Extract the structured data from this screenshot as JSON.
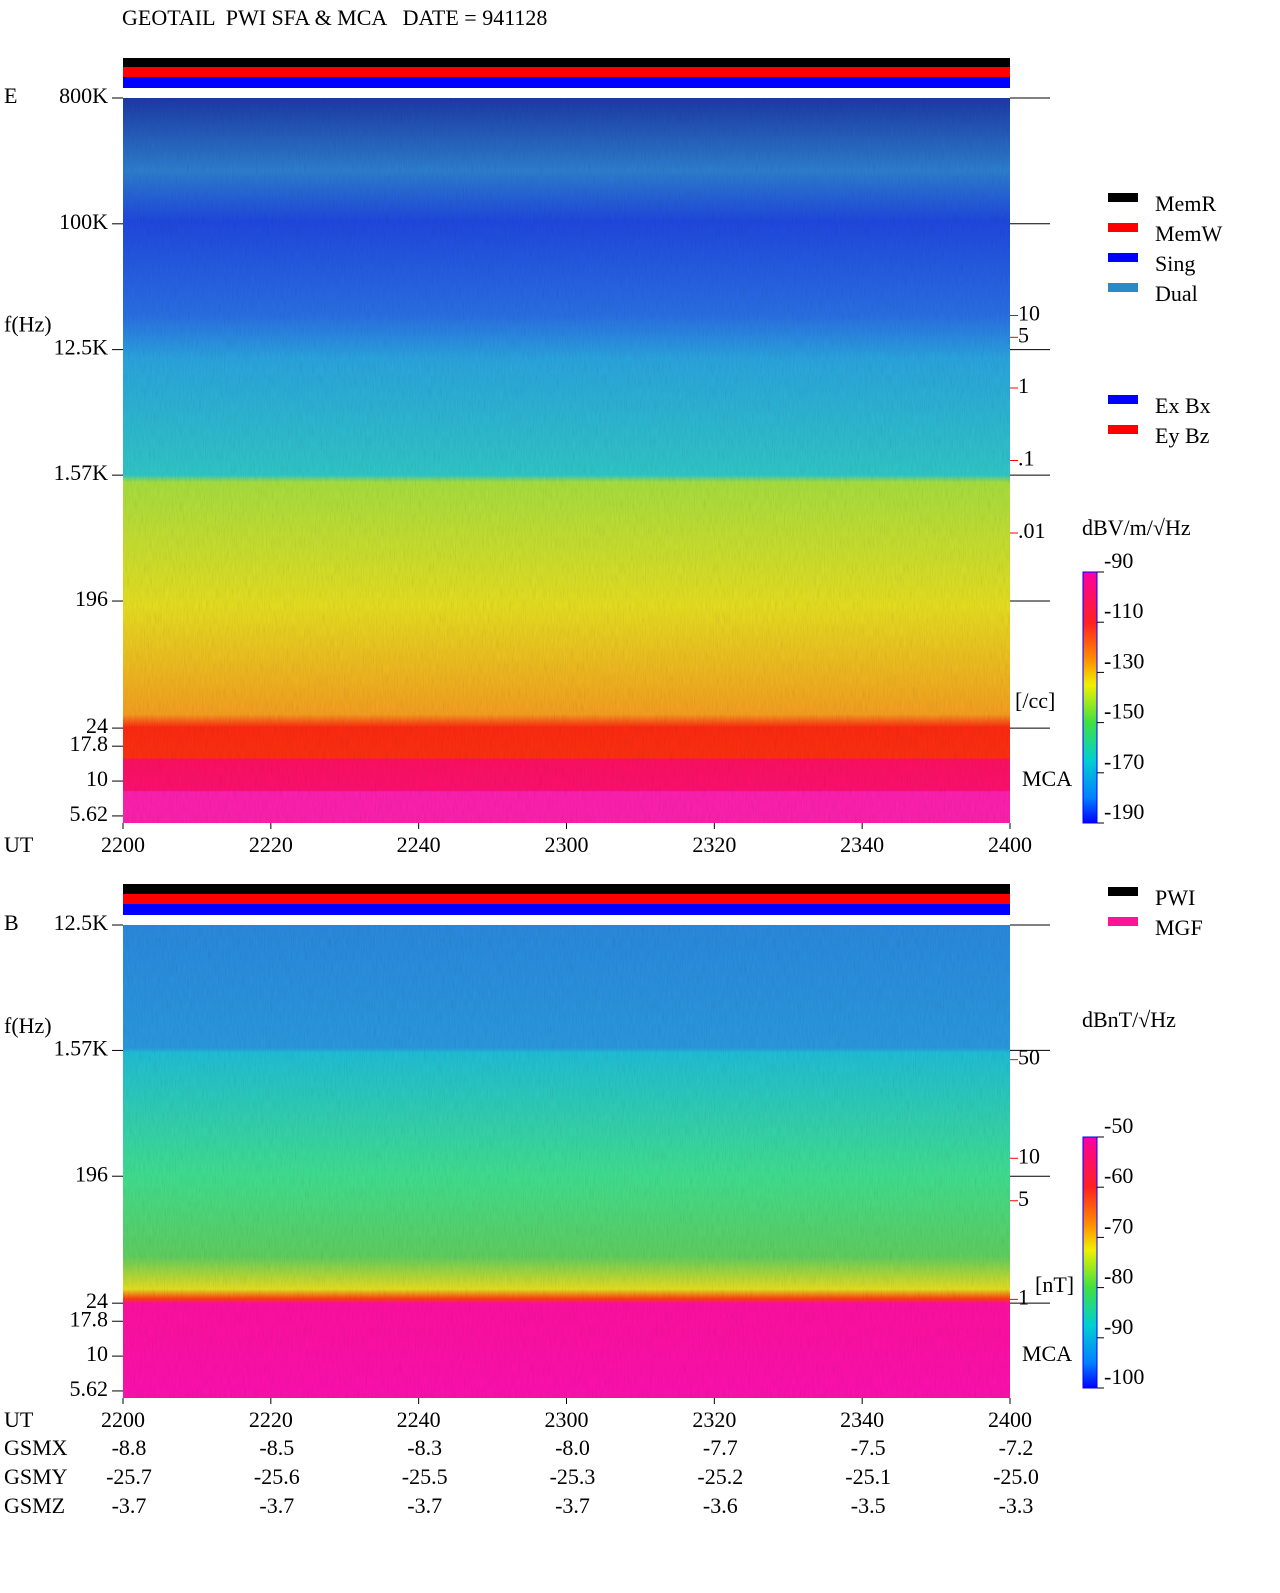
{
  "chart_data": [
    {
      "type": "spectrogram",
      "title": "GEOTAIL  PWI SFA & MCA   DATE = 941128",
      "label": "E",
      "ylabel": "f(Hz)",
      "xlabel": "UT",
      "region_label": "MCA",
      "log_y": true,
      "ylim": [
        5,
        800000
      ],
      "yticks": [
        {
          "value": 800000,
          "label": "800K"
        },
        {
          "value": 100000,
          "label": "100K"
        },
        {
          "value": 12500,
          "label": "12.5K"
        },
        {
          "value": 1570,
          "label": "1.57K"
        },
        196,
        24,
        17.8,
        10,
        5.62
      ],
      "xlim": [
        1320,
        1440
      ],
      "xticks": [
        {
          "value": 1320,
          "label": "2200"
        },
        {
          "value": 1340,
          "label": "2220"
        },
        {
          "value": 1360,
          "label": "2240"
        },
        {
          "value": 1380,
          "label": "2300"
        },
        {
          "value": 1400,
          "label": "2320"
        },
        {
          "value": 1420,
          "label": "2340"
        },
        {
          "value": 1440,
          "label": "2400"
        }
      ],
      "y2label": "[/cc]",
      "y2lim": [
        1e-06,
        10000
      ],
      "y2color": "#ff0000",
      "y2ticks": [
        10,
        5,
        1,
        {
          "value": 0.1,
          "label": ".1"
        },
        {
          "value": 0.01,
          "label": ".01"
        }
      ],
      "colorbar": {
        "title": "dBV/m/√Hz",
        "lim": [
          -190,
          -90
        ],
        "ticks": [
          -90,
          -110,
          -130,
          -150,
          -170,
          -190
        ]
      },
      "legend": [
        [
          {
            "name": "MemR",
            "color": "#000000"
          },
          {
            "name": "MemW",
            "color": "#ff0000"
          },
          {
            "name": "Sing",
            "color": "#0000ff"
          },
          {
            "name": "Dual",
            "color": "#2a8ac8"
          }
        ],
        [
          {
            "name": "Ex Bx",
            "color": "#0000ff"
          },
          {
            "name": "Ey Bz",
            "color": "#ff0000"
          }
        ]
      ]
    },
    {
      "type": "spectrogram",
      "label": "B",
      "ylabel": "f(Hz)",
      "xlabel": "UT",
      "region_label": "MCA",
      "log_y": true,
      "ylim": [
        5,
        12500
      ],
      "yticks": [
        {
          "value": 12500,
          "label": "12.5K"
        },
        {
          "value": 1570,
          "label": "1.57K"
        },
        196,
        24,
        17.8,
        10,
        5.62
      ],
      "xlim": [
        1320,
        1440
      ],
      "xticks": [
        {
          "value": 1320,
          "label": "2200"
        },
        {
          "value": 1340,
          "label": "2220"
        },
        {
          "value": 1360,
          "label": "2240"
        },
        {
          "value": 1380,
          "label": "2300"
        },
        {
          "value": 1400,
          "label": "2320"
        },
        {
          "value": 1420,
          "label": "2340"
        },
        {
          "value": 1440,
          "label": "2400"
        }
      ],
      "y2label": "[nT]",
      "y2lim": [
        0.2,
        450
      ],
      "y2color": "#ff0000",
      "y2ticks": [
        50,
        10,
        5,
        1
      ],
      "colorbar": {
        "title": "dBnT/√Hz",
        "lim": [
          -100,
          -50
        ],
        "ticks": [
          -50,
          -60,
          -70,
          -80,
          -90,
          -100
        ]
      },
      "legend": [
        [
          {
            "name": "PWI",
            "color": "#000000"
          },
          {
            "name": "MGF",
            "color": "#ff1493"
          }
        ]
      ],
      "ephemeris": [
        {
          "name": "GSMX",
          "values": [
            "-8.8",
            "-8.5",
            "-8.3",
            "-8.0",
            "-7.7",
            "-7.5",
            "-7.2"
          ]
        },
        {
          "name": "GSMY",
          "values": [
            "-25.7",
            "-25.6",
            "-25.5",
            "-25.3",
            "-25.2",
            "-25.1",
            "-25.0"
          ]
        },
        {
          "name": "GSMZ",
          "values": [
            "-3.7",
            "-3.7",
            "-3.7",
            "-3.7",
            "-3.6",
            "-3.5",
            "-3.3"
          ]
        }
      ]
    }
  ]
}
